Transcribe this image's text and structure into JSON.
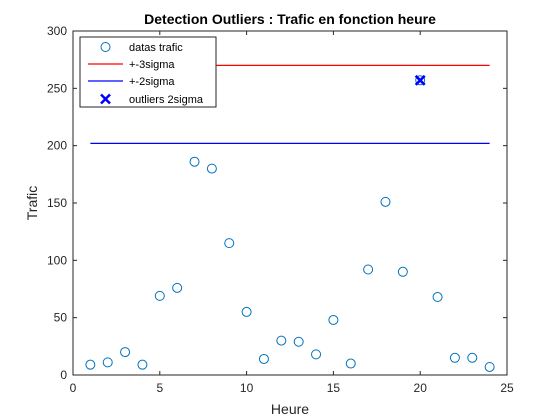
{
  "chart_data": {
    "type": "scatter",
    "title": "Detection Outliers : Trafic en fonction heure",
    "xlabel": "Heure",
    "ylabel": "Trafic",
    "xlim": [
      0,
      25
    ],
    "ylim": [
      0,
      300
    ],
    "xticks": [
      0,
      5,
      10,
      15,
      20,
      25
    ],
    "yticks": [
      0,
      50,
      100,
      150,
      200,
      250,
      300
    ],
    "grid": false,
    "legend_position": "top-left",
    "series": [
      {
        "name": "datas trafic",
        "kind": "scatter",
        "marker": "circle",
        "color": "#0072BD",
        "x": [
          1,
          2,
          3,
          4,
          5,
          6,
          7,
          8,
          9,
          10,
          11,
          12,
          13,
          14,
          15,
          16,
          17,
          18,
          19,
          20,
          21,
          22,
          23,
          24
        ],
        "y": [
          9,
          11,
          20,
          9,
          69,
          76,
          186,
          180,
          115,
          55,
          14,
          30,
          29,
          18,
          48,
          10,
          92,
          151,
          90,
          257,
          68,
          15,
          15,
          7
        ]
      },
      {
        "name": "+-3sigma",
        "kind": "line",
        "color": "#ff0000",
        "x": [
          1,
          24
        ],
        "y": [
          270,
          270
        ]
      },
      {
        "name": "+-2sigma",
        "kind": "line",
        "color": "#0000ff",
        "x": [
          1,
          24
        ],
        "y": [
          202,
          202
        ]
      },
      {
        "name": "outliers 2sigma",
        "kind": "scatter",
        "marker": "x",
        "color": "#0000ff",
        "x": [
          20
        ],
        "y": [
          257
        ]
      }
    ]
  }
}
